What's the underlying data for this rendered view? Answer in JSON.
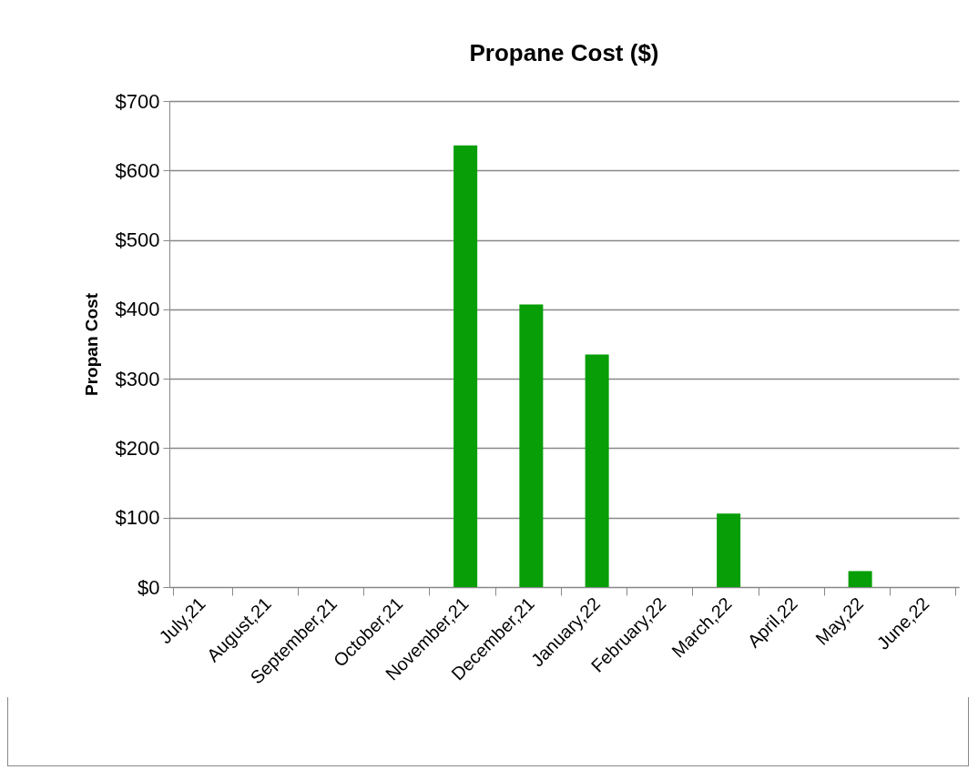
{
  "chart_data": {
    "type": "bar",
    "title": "Propane Cost ($)",
    "ylabel": "Propan Cost",
    "categories": [
      "July,21",
      "August,21",
      "September,21",
      "October,21",
      "November,21",
      "December,21",
      "January,22",
      "February,22",
      "March,22",
      "April,22",
      "May,22",
      "June,22"
    ],
    "values": [
      0,
      0,
      0,
      0,
      636,
      407,
      335,
      0,
      106,
      0,
      23,
      0
    ],
    "color": "#079e07",
    "ylim": [
      0,
      700
    ],
    "yticks": [
      {
        "value": 0,
        "label": "$0"
      },
      {
        "value": 100,
        "label": "$100"
      },
      {
        "value": 200,
        "label": "$200"
      },
      {
        "value": 300,
        "label": "$300"
      },
      {
        "value": 400,
        "label": "$400"
      },
      {
        "value": 500,
        "label": "$500"
      },
      {
        "value": 600,
        "label": "$600"
      },
      {
        "value": 700,
        "label": "$700"
      }
    ],
    "grid": "y"
  }
}
